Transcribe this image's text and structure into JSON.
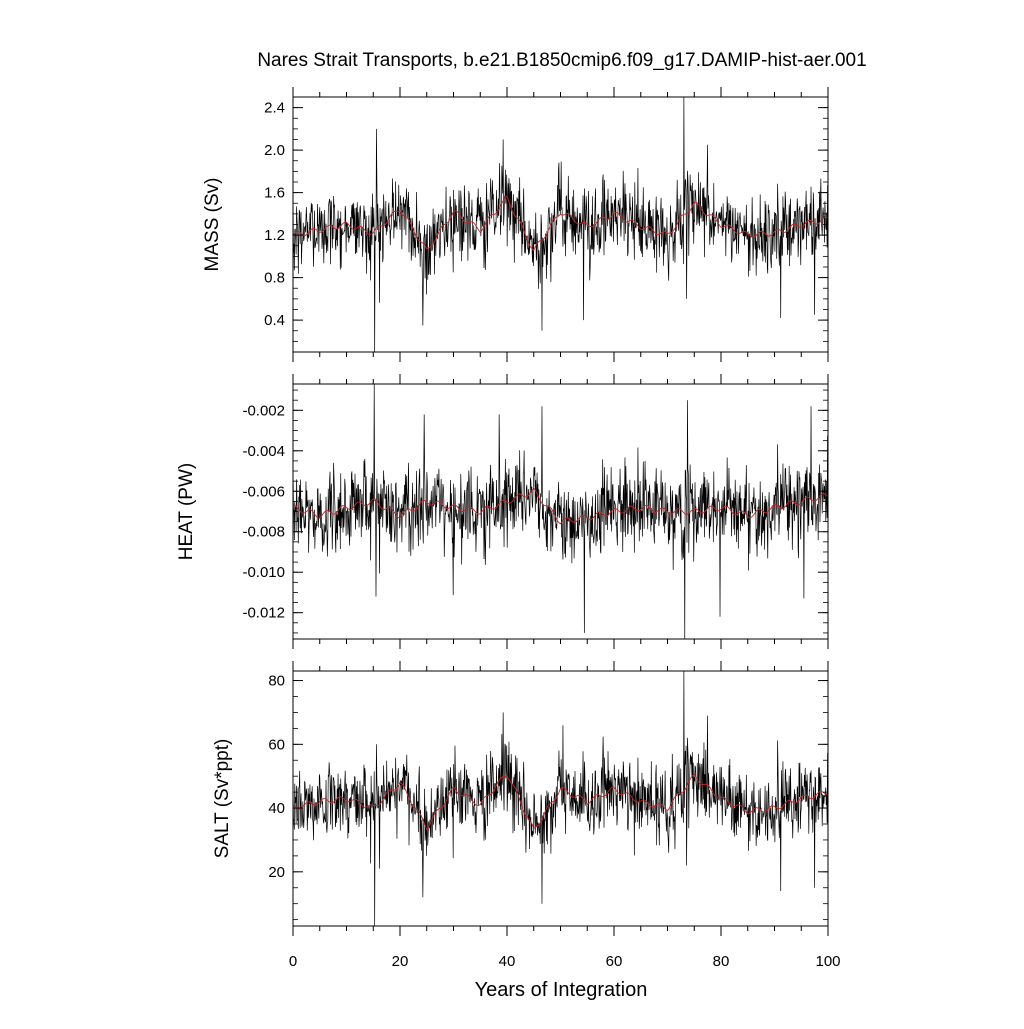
{
  "chart_data": {
    "type": "line",
    "title": "Nares Strait Transports, b.e21.B1850cmip6.f09_g17.DAMIP-hist-aer.001",
    "xlabel": "Years of Integration",
    "x_range": [
      0,
      100
    ],
    "x_ticks": [
      "0",
      "20",
      "40",
      "60",
      "80",
      "100"
    ],
    "colors": {
      "raw": "#000000",
      "smoothed": "#cc2222",
      "frame": "#000000"
    },
    "panels": [
      {
        "ylabel": "MASS (Sv)",
        "ylim": [
          0.1,
          2.5
        ],
        "y_ticks": [
          "0.4",
          "0.8",
          "1.2",
          "1.6",
          "2.0",
          "2.4"
        ],
        "y_tick_values": [
          0.4,
          0.8,
          1.2,
          1.6,
          2.0,
          2.4
        ],
        "mean": 1.28,
        "noise": 0.21,
        "smooth_years": [
          0,
          5,
          10,
          15,
          20,
          25,
          30,
          35,
          40,
          45,
          50,
          55,
          60,
          65,
          70,
          75,
          80,
          85,
          90,
          95,
          100
        ],
        "smooth_values": [
          1.2,
          1.25,
          1.3,
          1.22,
          1.45,
          1.05,
          1.42,
          1.25,
          1.55,
          1.05,
          1.42,
          1.28,
          1.4,
          1.28,
          1.2,
          1.5,
          1.3,
          1.2,
          1.22,
          1.3,
          1.35
        ],
        "spikes": [
          [
            15.3,
            0.1
          ],
          [
            15.6,
            2.2
          ],
          [
            24.3,
            0.35
          ],
          [
            39.3,
            2.1
          ],
          [
            46.5,
            0.3
          ],
          [
            73.1,
            2.5
          ],
          [
            73.6,
            0.6
          ],
          [
            77.5,
            2.05
          ],
          [
            91.2,
            0.42
          ],
          [
            97.5,
            0.45
          ],
          [
            54.3,
            0.4
          ]
        ]
      },
      {
        "ylabel": "HEAT (PW)",
        "ylim": [
          -0.0133,
          -0.0007
        ],
        "y_ticks": [
          "-0.002",
          "-0.004",
          "-0.006",
          "-0.008",
          "-0.010",
          "-0.012"
        ],
        "y_tick_values": [
          -0.002,
          -0.004,
          -0.006,
          -0.008,
          -0.01,
          -0.012
        ],
        "mean": -0.0068,
        "noise": 0.0012,
        "smooth_years": [
          0,
          5,
          10,
          15,
          20,
          25,
          30,
          35,
          40,
          45,
          50,
          55,
          60,
          65,
          70,
          75,
          80,
          85,
          90,
          95,
          100
        ],
        "smooth_values": [
          -0.0068,
          -0.0072,
          -0.0068,
          -0.0065,
          -0.0072,
          -0.0065,
          -0.0068,
          -0.007,
          -0.0065,
          -0.006,
          -0.0075,
          -0.0073,
          -0.007,
          -0.0068,
          -0.007,
          -0.007,
          -0.0068,
          -0.0072,
          -0.0068,
          -0.0065,
          -0.0062
        ],
        "spikes": [
          [
            15.2,
            -0.0007
          ],
          [
            15.5,
            -0.0112
          ],
          [
            24.5,
            -0.0022
          ],
          [
            38.5,
            -0.0022
          ],
          [
            46.5,
            -0.0018
          ],
          [
            54.5,
            -0.013
          ],
          [
            73.2,
            -0.0135
          ],
          [
            73.7,
            -0.0015
          ],
          [
            79.8,
            -0.0122
          ],
          [
            96.8,
            -0.0018
          ],
          [
            95.5,
            -0.0113
          ]
        ]
      },
      {
        "ylabel": "SALT (Sv*ppt)",
        "ylim": [
          3,
          83
        ],
        "y_ticks": [
          "20",
          "40",
          "60",
          "80"
        ],
        "y_tick_values": [
          20,
          40,
          60,
          80
        ],
        "mean": 41.5,
        "noise": 6.8,
        "smooth_years": [
          0,
          5,
          10,
          15,
          20,
          25,
          30,
          35,
          40,
          45,
          50,
          55,
          60,
          65,
          70,
          75,
          80,
          85,
          90,
          95,
          100
        ],
        "smooth_values": [
          40,
          42,
          43,
          40,
          48,
          34,
          46,
          41,
          51,
          33,
          46,
          42,
          46,
          42,
          40,
          50,
          43,
          39,
          40,
          43,
          45
        ],
        "spikes": [
          [
            15.3,
            3
          ],
          [
            15.6,
            60
          ],
          [
            24.3,
            12
          ],
          [
            39.3,
            70
          ],
          [
            46.5,
            10
          ],
          [
            73.1,
            83
          ],
          [
            73.6,
            22
          ],
          [
            77.5,
            69
          ],
          [
            91.2,
            14
          ],
          [
            97.5,
            15
          ],
          [
            50.5,
            66
          ]
        ]
      }
    ]
  }
}
